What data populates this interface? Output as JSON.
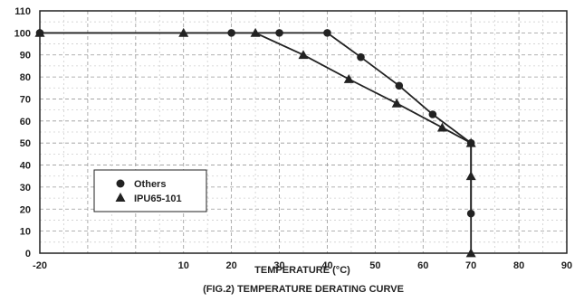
{
  "chart_data": {
    "type": "line",
    "title": "(FIG.2) TEMPERATURE DERATING CURVE",
    "xlabel": "TEMPERATURE (°C)",
    "ylabel": "",
    "xlim": [
      -20,
      90
    ],
    "ylim": [
      0,
      110
    ],
    "x_ticks": [
      "-20",
      "10",
      "20",
      "30",
      "40",
      "50",
      "60",
      "70",
      "80",
      "90"
    ],
    "y_ticks": [
      "0",
      "10",
      "20",
      "30",
      "40",
      "50",
      "60",
      "70",
      "80",
      "90",
      "100",
      "110"
    ],
    "grid": "dashed",
    "legend_position": "bottom-left",
    "series": [
      {
        "name": "Others",
        "marker": "circle",
        "color": "#222222",
        "points": [
          [
            -20,
            100
          ],
          [
            20,
            100
          ],
          [
            30,
            100
          ],
          [
            40,
            100
          ],
          [
            47,
            89
          ],
          [
            55,
            76
          ],
          [
            62,
            63
          ],
          [
            70,
            50
          ],
          [
            70,
            18
          ]
        ]
      },
      {
        "name": "IPU65-101",
        "marker": "triangle",
        "color": "#222222",
        "points": [
          [
            -20,
            100
          ],
          [
            10,
            100
          ],
          [
            25,
            100
          ],
          [
            35,
            90
          ],
          [
            44.5,
            79
          ],
          [
            54.5,
            68
          ],
          [
            64,
            57
          ],
          [
            70,
            50
          ],
          [
            70,
            35
          ],
          [
            70,
            0
          ]
        ]
      }
    ]
  }
}
